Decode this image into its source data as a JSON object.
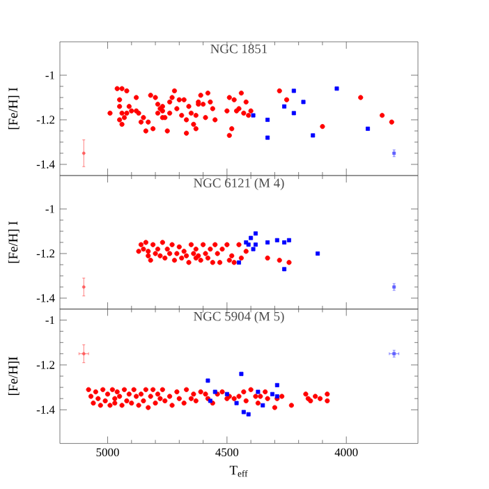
{
  "chart_data": [
    {
      "type": "scatter",
      "title": "NGC 1851",
      "ylabel": "[Fe/H] I",
      "xlim": [
        5200,
        3700
      ],
      "xticks": [
        5000,
        4500,
        4000
      ],
      "ylim": [
        -1.45,
        -0.85
      ],
      "yticks": [
        -1,
        -1.2,
        -1.4
      ],
      "tick_labels": "y",
      "series": [
        {
          "color": "#ff0000",
          "marker": "circle",
          "x": [
            4990,
            4960,
            4940,
            4920,
            4950,
            4950,
            4940,
            4950,
            4940,
            4930,
            4920,
            4910,
            4900,
            4880,
            4880,
            4870,
            4860,
            4850,
            4840,
            4830,
            4820,
            4810,
            4800,
            4790,
            4790,
            4780,
            4770,
            4770,
            4770,
            4760,
            4750,
            4740,
            4740,
            4730,
            4720,
            4710,
            4700,
            4690,
            4680,
            4670,
            4670,
            4660,
            4650,
            4640,
            4630,
            4630,
            4620,
            4620,
            4610,
            4600,
            4590,
            4580,
            4570,
            4560,
            4550,
            4500,
            4490,
            4490,
            4480,
            4470,
            4460,
            4450,
            4440,
            4430,
            4420,
            4410,
            4400,
            4280,
            4250,
            4100,
            3940,
            3850,
            3810
          ],
          "values": [
            -1.17,
            -1.06,
            -1.06,
            -1.07,
            -1.11,
            -1.14,
            -1.17,
            -1.2,
            -1.22,
            -1.19,
            -1.17,
            -1.14,
            -1.16,
            -1.1,
            -1.16,
            -1.17,
            -1.21,
            -1.19,
            -1.25,
            -1.21,
            -1.09,
            -1.24,
            -1.1,
            -1.13,
            -1.17,
            -1.15,
            -1.19,
            -1.16,
            -1.14,
            -1.19,
            -1.25,
            -1.12,
            -1.17,
            -1.1,
            -1.07,
            -1.15,
            -1.11,
            -1.18,
            -1.11,
            -1.2,
            -1.26,
            -1.14,
            -1.17,
            -1.22,
            -1.24,
            -1.18,
            -1.13,
            -1.12,
            -1.09,
            -1.13,
            -1.19,
            -1.08,
            -1.12,
            -1.15,
            -1.2,
            -1.16,
            -1.1,
            -1.27,
            -1.24,
            -1.11,
            -1.16,
            -1.15,
            -1.08,
            -1.17,
            -1.12,
            -1.18,
            -1.16,
            -1.07,
            -1.11,
            -1.23,
            -1.1,
            -1.18,
            -1.21
          ]
        },
        {
          "color": "#0000ff",
          "marker": "square",
          "x": [
            4390,
            4330,
            4330,
            4260,
            4220,
            4220,
            4180,
            4140,
            4040,
            3910
          ],
          "values": [
            -1.18,
            -1.2,
            -1.28,
            -1.14,
            -1.07,
            -1.17,
            -1.12,
            -1.27,
            -1.06,
            -1.24
          ]
        },
        {
          "color": "#ff6060",
          "marker": "circle",
          "x": [
            5100
          ],
          "values": [
            -1.35
          ],
          "errors": [
            0.06
          ]
        },
        {
          "color": "#6060ff",
          "marker": "square",
          "x": [
            3800
          ],
          "values": [
            -1.35
          ],
          "errors": [
            0.015
          ]
        }
      ]
    },
    {
      "type": "scatter",
      "title": "NGC 6121 (M 4)",
      "ylabel": "[Fe/H] I",
      "xlim": [
        5200,
        3700
      ],
      "xticks": [
        5000,
        4500,
        4000
      ],
      "ylim": [
        -1.45,
        -0.85
      ],
      "yticks": [
        -1,
        -1.2,
        -1.4
      ],
      "tick_labels": "y",
      "series": [
        {
          "color": "#ff0000",
          "marker": "circle",
          "x": [
            4870,
            4860,
            4850,
            4840,
            4830,
            4830,
            4820,
            4810,
            4800,
            4790,
            4780,
            4770,
            4760,
            4750,
            4740,
            4730,
            4720,
            4710,
            4700,
            4690,
            4680,
            4670,
            4660,
            4650,
            4640,
            4630,
            4630,
            4620,
            4610,
            4600,
            4590,
            4580,
            4570,
            4560,
            4550,
            4540,
            4530,
            4520,
            4500,
            4490,
            4480,
            4470,
            4450,
            4440,
            4420,
            4330,
            4280,
            4240
          ],
          "values": [
            -1.19,
            -1.16,
            -1.18,
            -1.15,
            -1.21,
            -1.19,
            -1.23,
            -1.16,
            -1.2,
            -1.18,
            -1.21,
            -1.15,
            -1.22,
            -1.18,
            -1.2,
            -1.16,
            -1.23,
            -1.2,
            -1.17,
            -1.22,
            -1.19,
            -1.21,
            -1.24,
            -1.16,
            -1.2,
            -1.22,
            -1.18,
            -1.21,
            -1.23,
            -1.16,
            -1.2,
            -1.22,
            -1.18,
            -1.24,
            -1.16,
            -1.2,
            -1.24,
            -1.18,
            -1.16,
            -1.23,
            -1.21,
            -1.24,
            -1.16,
            -1.22,
            -1.19,
            -1.22,
            -1.23,
            -1.24
          ]
        },
        {
          "color": "#0000ff",
          "marker": "square",
          "x": [
            4450,
            4420,
            4410,
            4400,
            4390,
            4380,
            4380,
            4330,
            4290,
            4260,
            4260,
            4240,
            4120
          ],
          "values": [
            -1.24,
            -1.15,
            -1.16,
            -1.13,
            -1.18,
            -1.16,
            -1.11,
            -1.15,
            -1.14,
            -1.27,
            -1.15,
            -1.14,
            -1.2
          ]
        },
        {
          "color": "#ff6060",
          "marker": "circle",
          "x": [
            5100
          ],
          "values": [
            -1.35
          ],
          "errors": [
            0.04
          ]
        },
        {
          "color": "#6060ff",
          "marker": "square",
          "x": [
            3800
          ],
          "values": [
            -1.35
          ],
          "errors": [
            0.015
          ]
        }
      ]
    },
    {
      "type": "scatter",
      "title": "NGC 5904 (M 5)",
      "xlabel": "T$_{eff}$",
      "ylabel": "[Fe/H]I",
      "xlim": [
        5200,
        3700
      ],
      "xticks": [
        5000,
        4500,
        4000
      ],
      "ylim": [
        -1.55,
        -0.95
      ],
      "yticks": [
        -1,
        -1.2,
        -1.4
      ],
      "series": [
        {
          "color": "#ff0000",
          "marker": "circle",
          "x": [
            5080,
            5070,
            5060,
            5050,
            5040,
            5030,
            5020,
            5010,
            5000,
            4990,
            4980,
            4970,
            4970,
            4960,
            4950,
            4940,
            4930,
            4920,
            4910,
            4900,
            4890,
            4880,
            4870,
            4860,
            4850,
            4840,
            4830,
            4820,
            4810,
            4800,
            4790,
            4780,
            4770,
            4760,
            4740,
            4730,
            4710,
            4700,
            4680,
            4670,
            4650,
            4640,
            4630,
            4610,
            4590,
            4580,
            4560,
            4540,
            4520,
            4500,
            4490,
            4470,
            4450,
            4430,
            4420,
            4400,
            4380,
            4370,
            4360,
            4340,
            4330,
            4300,
            4290,
            4270,
            4230,
            4170,
            4160,
            4150,
            4130,
            4110,
            4080,
            4080
          ],
          "values": [
            -1.31,
            -1.34,
            -1.37,
            -1.32,
            -1.35,
            -1.38,
            -1.31,
            -1.36,
            -1.33,
            -1.38,
            -1.31,
            -1.35,
            -1.37,
            -1.32,
            -1.34,
            -1.38,
            -1.31,
            -1.36,
            -1.33,
            -1.37,
            -1.31,
            -1.34,
            -1.38,
            -1.33,
            -1.36,
            -1.31,
            -1.39,
            -1.34,
            -1.31,
            -1.37,
            -1.33,
            -1.35,
            -1.31,
            -1.36,
            -1.34,
            -1.38,
            -1.32,
            -1.35,
            -1.37,
            -1.31,
            -1.35,
            -1.33,
            -1.36,
            -1.32,
            -1.33,
            -1.35,
            -1.37,
            -1.33,
            -1.32,
            -1.35,
            -1.34,
            -1.35,
            -1.34,
            -1.32,
            -1.36,
            -1.31,
            -1.34,
            -1.37,
            -1.34,
            -1.32,
            -1.35,
            -1.39,
            -1.35,
            -1.34,
            -1.38,
            -1.33,
            -1.35,
            -1.36,
            -1.34,
            -1.35,
            -1.36,
            -1.33
          ]
        },
        {
          "color": "#0000ff",
          "marker": "square",
          "x": [
            4580,
            4570,
            4550,
            4500,
            4460,
            4440,
            4430,
            4410,
            4370,
            4350,
            4310,
            4290,
            4290
          ],
          "values": [
            -1.27,
            -1.36,
            -1.32,
            -1.33,
            -1.37,
            -1.24,
            -1.41,
            -1.42,
            -1.32,
            -1.38,
            -1.33,
            -1.29,
            -1.34
          ]
        },
        {
          "color": "#ff6060",
          "marker": "circle",
          "x": [
            5100
          ],
          "values": [
            -1.15
          ],
          "errors": [
            0.04
          ],
          "xerrors": [
            20
          ]
        },
        {
          "color": "#6060ff",
          "marker": "square",
          "x": [
            3800
          ],
          "values": [
            -1.15
          ],
          "errors": [
            0.015
          ],
          "xerrors": [
            20
          ]
        }
      ]
    }
  ]
}
